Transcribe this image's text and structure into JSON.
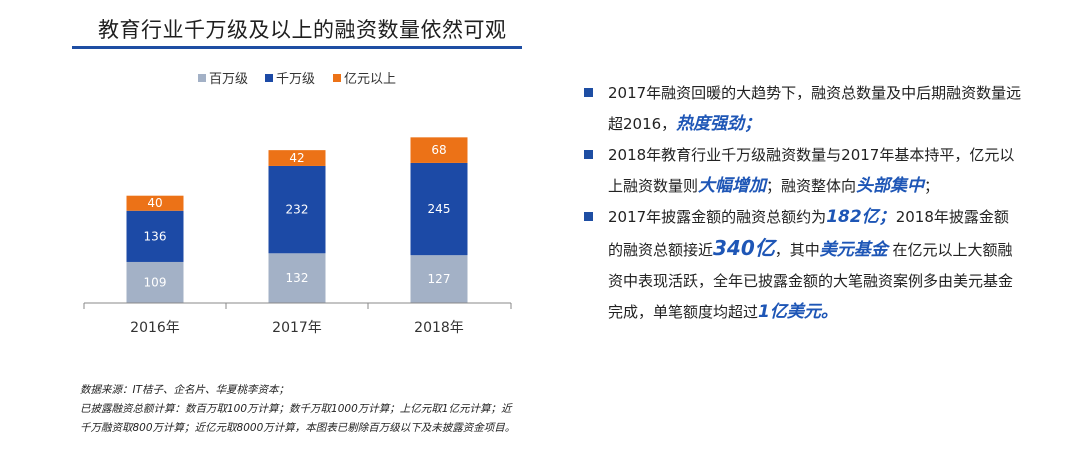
{
  "title": "教育行业千万级及以上的融资数量依然可观",
  "colors": {
    "accent": "#1e4ea3",
    "highlight": "#1e56b6"
  },
  "chart_data": {
    "type": "bar",
    "stacked": true,
    "categories": [
      "2016年",
      "2017年",
      "2018年"
    ],
    "series": [
      {
        "name": "百万级",
        "values": [
          109,
          132,
          127
        ],
        "color": "#a3b1c6"
      },
      {
        "name": "千万级",
        "values": [
          136,
          232,
          245
        ],
        "color": "#1c4aa6"
      },
      {
        "name": "亿元以上",
        "values": [
          40,
          42,
          68
        ],
        "color": "#ec7217"
      }
    ],
    "legend_position": "top",
    "grid": false
  },
  "bullets": [
    {
      "segments": [
        {
          "text": "2017年融资回暖的大趋势下，融资总数量及中后期融资数量远超2016，",
          "style": "normal"
        },
        {
          "text": "热度强劲；",
          "style": "em"
        }
      ]
    },
    {
      "segments": [
        {
          "text": "2018年教育行业千万级融资数量与2017年基本持平，亿元以上融资数量则",
          "style": "normal"
        },
        {
          "text": "大幅增加",
          "style": "em"
        },
        {
          "text": "；融资整体向",
          "style": "normal"
        },
        {
          "text": "头部集中",
          "style": "em"
        },
        {
          "text": "；",
          "style": "normal"
        }
      ]
    },
    {
      "segments": [
        {
          "text": "2017年披露金额的融资总额约为",
          "style": "normal"
        },
        {
          "text": "182亿；",
          "style": "em"
        },
        {
          "text": "2018年披露金额的融资总额接近",
          "style": "normal"
        },
        {
          "text": "340亿",
          "style": "em big"
        },
        {
          "text": "，其中",
          "style": "normal"
        },
        {
          "text": "美元基金",
          "style": "em"
        },
        {
          "text": " 在亿元以上大额融资中表现活跃，全年已披露金额的大笔融资案例多由美元基金完成，单笔额度均超过",
          "style": "normal"
        },
        {
          "text": "1亿美元。",
          "style": "em"
        }
      ]
    }
  ],
  "notes": [
    "数据来源：IT桔子、企名片、华夏桃李资本；",
    "已披露融资总额计算：数百万取100万计算；数千万取1000万计算；上亿元取1亿元计算；近",
    "千万融资取800万计算；近亿元取8000万计算，本图表已剔除百万级以下及未披露资金项目。"
  ]
}
